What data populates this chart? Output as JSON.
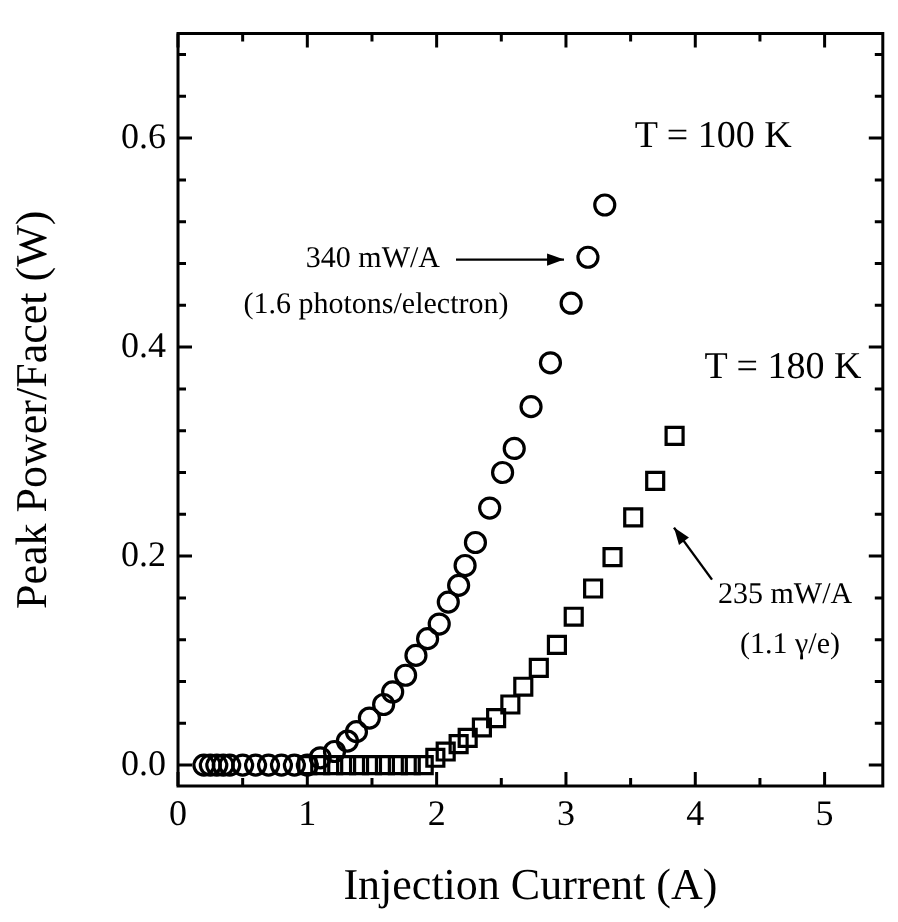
{
  "chart_data": {
    "type": "scatter",
    "xlabel": "Injection Current (A)",
    "ylabel": "Peak Power/Facet (W)",
    "xlim": [
      0,
      5.45
    ],
    "ylim": [
      -0.02,
      0.7
    ],
    "xticks": [
      0,
      {
        "value": 0.5,
        "label": null
      },
      1,
      {
        "value": 1.5,
        "label": null
      },
      2,
      {
        "value": 2.5,
        "label": null
      },
      3,
      {
        "value": 3.5,
        "label": null
      },
      4,
      {
        "value": 4.5,
        "label": null
      },
      5
    ],
    "yticks": [
      {
        "value": 0,
        "label": "0.0"
      },
      {
        "value": 0.04,
        "label": null
      },
      {
        "value": 0.08,
        "label": null
      },
      {
        "value": 0.12,
        "label": null
      },
      {
        "value": 0.16,
        "label": null
      },
      {
        "value": 0.2,
        "label": "0.2"
      },
      {
        "value": 0.24,
        "label": null
      },
      {
        "value": 0.28,
        "label": null
      },
      {
        "value": 0.32,
        "label": null
      },
      {
        "value": 0.36,
        "label": null
      },
      {
        "value": 0.4,
        "label": "0.4"
      },
      {
        "value": 0.44,
        "label": null
      },
      {
        "value": 0.48,
        "label": null
      },
      {
        "value": 0.52,
        "label": null
      },
      {
        "value": 0.56,
        "label": null
      },
      {
        "value": 0.6,
        "label": "0.6"
      },
      {
        "value": 0.64,
        "label": null
      },
      {
        "value": 0.68,
        "label": null
      }
    ],
    "grid": false,
    "legend": "right",
    "series": [
      {
        "name": "T = 100 K",
        "color": "#000000",
        "marker": "circle",
        "x": [
          0.2,
          0.25,
          0.3,
          0.35,
          0.4,
          0.5,
          0.6,
          0.7,
          0.8,
          0.9,
          1.0,
          1.1,
          1.21,
          1.31,
          1.38,
          1.48,
          1.59,
          1.66,
          1.76,
          1.84,
          1.93,
          2.02,
          2.09,
          2.17,
          2.22,
          2.3,
          2.41,
          2.51,
          2.6,
          2.73,
          2.88,
          3.04,
          3.17,
          3.3
        ],
        "values": [
          0,
          0,
          0,
          0,
          0,
          0,
          0,
          0,
          0,
          0,
          0,
          0.007,
          0.013,
          0.023,
          0.032,
          0.045,
          0.058,
          0.07,
          0.086,
          0.105,
          0.121,
          0.135,
          0.156,
          0.172,
          0.191,
          0.213,
          0.246,
          0.28,
          0.303,
          0.343,
          0.385,
          0.442,
          0.486,
          0.536
        ]
      },
      {
        "name": "T = 180 K",
        "color": "#000000",
        "marker": "square",
        "x": [
          1.0,
          1.1,
          1.2,
          1.3,
          1.4,
          1.5,
          1.6,
          1.7,
          1.8,
          1.9,
          1.99,
          2.07,
          2.17,
          2.24,
          2.35,
          2.46,
          2.57,
          2.67,
          2.79,
          2.93,
          3.06,
          3.21,
          3.36,
          3.52,
          3.69,
          3.84
        ],
        "values": [
          0,
          0,
          0,
          0,
          0,
          0,
          0,
          0,
          0,
          0,
          0.007,
          0.013,
          0.02,
          0.026,
          0.036,
          0.045,
          0.058,
          0.075,
          0.093,
          0.115,
          0.142,
          0.169,
          0.199,
          0.237,
          0.272,
          0.315
        ]
      }
    ],
    "annotations": [
      "340 mW/A\n(1.6 photons/electron)",
      "235 mW/A\n(1.1 γ/e)"
    ]
  }
}
